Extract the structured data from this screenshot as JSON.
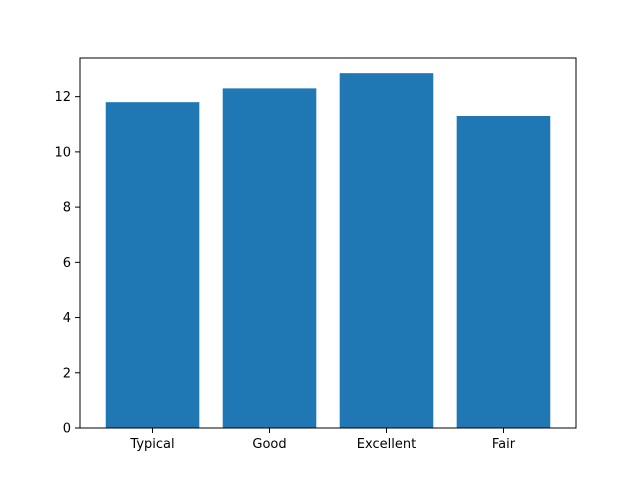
{
  "chart_data": {
    "type": "bar",
    "categories": [
      "Typical",
      "Good",
      "Excellent",
      "Fair"
    ],
    "values": [
      11.8,
      12.3,
      12.85,
      11.3
    ],
    "title": "",
    "xlabel": "",
    "ylabel": "",
    "ylim": [
      0,
      13.4
    ],
    "yticks": [
      0,
      2,
      4,
      6,
      8,
      10,
      12
    ],
    "grid": false,
    "bar_color": "#1f77b4"
  }
}
